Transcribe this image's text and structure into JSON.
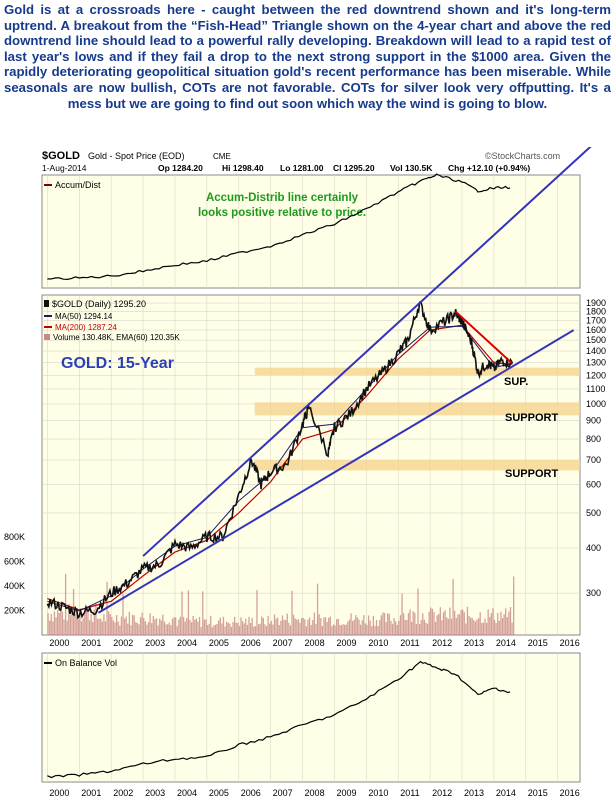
{
  "caption": "Gold is at a crossroads here - caught between the red downtrend shown and it's long-term uptrend. A breakout from the “Fish-Head” Triangle shown on the 4-year chart and above the red downtrend line should lead to a powerful rally developing. Breakdown will lead to a rapid test of last year's lows and if they fail a drop to the next strong support in the $1000 area. Given the rapidly deteriorating geopolitical situation gold's recent performance has been miserable. While seasonals are now bullish, COTs are not favorable. COTs for silver look very offputting. It's a mess but we are going to find out soon which way the wind is going to blow.",
  "header": {
    "symbol": "$GOLD",
    "name": "Gold - Spot Price (EOD)",
    "exchange": "CME",
    "date": "1-Aug-2014",
    "op": "Op 1284.20",
    "hi": "Hi 1298.40",
    "lo": "Lo 1281.00",
    "cl": "Cl 1295.20",
    "vol": "Vol 130.5K",
    "chg": "Chg +12.10 (+0.94%)",
    "source": "©StockCharts.com"
  },
  "top_panel": {
    "legend": "Accum/Dist",
    "annotation_line1": "Accum-Distrib line certainly",
    "annotation_line2": "looks positive relative to price."
  },
  "main_panel": {
    "legend_symbol": "$GOLD (Daily) 1295.20",
    "legend_ma50": "MA(50) 1294.14",
    "legend_ma200": "MA(200) 1287.24",
    "legend_volume": "Volume 130.48K, EMA(60) 120.35K",
    "title": "GOLD: 15-Year",
    "label_sup": "SUP.",
    "label_support1": "SUPPORT",
    "label_support2": "SUPPORT"
  },
  "bottom_panel": {
    "legend": "On Balance Vol"
  },
  "colors": {
    "panel_bg": "#ffffe8",
    "price": "#111111",
    "ma50": "#1a1a66",
    "ma200": "#c00000",
    "trendline": "#3333bb",
    "downtrend": "#dd0000",
    "support_band": "#f5d28a",
    "annotation_green": "#1e9a1e",
    "title_blue": "#2b3fb8",
    "volume": "#c98a86"
  },
  "chart_data": {
    "type": "line",
    "x_labels": [
      "2000",
      "2001",
      "2002",
      "2003",
      "2004",
      "2005",
      "2006",
      "2007",
      "2008",
      "2009",
      "2010",
      "2011",
      "2012",
      "2013",
      "2014",
      "2015",
      "2016"
    ],
    "y_scale": "log",
    "y_ticks": [
      300,
      400,
      500,
      600,
      700,
      800,
      900,
      1000,
      1100,
      1200,
      1300,
      1400,
      1500,
      1600,
      1700,
      1800,
      1900
    ],
    "y_tick_labels": [
      "300",
      "400",
      "500",
      "600",
      "700",
      "800",
      "900",
      "1000",
      "1100",
      "1200",
      "1300",
      "1400",
      "1500",
      "1600",
      "1700",
      "1800",
      "1900"
    ],
    "volume_ticks": [
      200000,
      400000,
      600000,
      800000
    ],
    "volume_tick_labels": [
      "200K",
      "400K",
      "600K",
      "800K"
    ],
    "series": [
      {
        "name": "$GOLD (Daily)",
        "x": [
          2000,
          2000.5,
          2001,
          2001.5,
          2002,
          2002.5,
          2003,
          2003.5,
          2004,
          2004.5,
          2005,
          2005.5,
          2006,
          2006.4,
          2006.7,
          2007,
          2007.5,
          2008,
          2008.2,
          2008.8,
          2009,
          2009.5,
          2010,
          2010.5,
          2011,
          2011.3,
          2011.67,
          2012,
          2012.5,
          2012.8,
          2013,
          2013.3,
          2013.5,
          2013.8,
          2014,
          2014.25,
          2014.58
        ],
        "values": [
          285,
          275,
          265,
          270,
          300,
          320,
          350,
          360,
          410,
          400,
          430,
          430,
          560,
          700,
          600,
          650,
          680,
          880,
          980,
          730,
          860,
          940,
          1100,
          1220,
          1380,
          1500,
          1900,
          1600,
          1700,
          1780,
          1690,
          1480,
          1220,
          1300,
          1250,
          1320,
          1295
        ]
      },
      {
        "name": "MA(50)",
        "x": [
          2000,
          2001,
          2002,
          2003,
          2004,
          2005,
          2006,
          2007,
          2008,
          2009,
          2010,
          2011,
          2012,
          2013,
          2014,
          2014.58
        ],
        "values": [
          285,
          268,
          295,
          350,
          405,
          428,
          540,
          640,
          860,
          880,
          1100,
          1370,
          1630,
          1640,
          1260,
          1294
        ]
      },
      {
        "name": "MA(200)",
        "x": [
          2000,
          2001,
          2002,
          2003,
          2004,
          2005,
          2006,
          2007,
          2008,
          2009,
          2010,
          2011,
          2012,
          2013,
          2014,
          2014.58
        ],
        "values": [
          290,
          270,
          285,
          335,
          390,
          420,
          500,
          610,
          800,
          850,
          1050,
          1330,
          1600,
          1650,
          1300,
          1287
        ]
      }
    ],
    "support_zones": [
      [
        1200,
        1260
      ],
      [
        930,
        1010
      ],
      [
        655,
        700
      ]
    ],
    "downtrend_line": {
      "x": [
        2012.8,
        2014.55
      ],
      "values": [
        1800,
        1300
      ]
    },
    "channel_upper": {
      "x": [
        2003,
        2011.67
      ],
      "values": [
        380,
        1900
      ]
    },
    "channel_lower": {
      "x": [
        2001.6,
        2016.5
      ],
      "values": [
        265,
        1600
      ]
    },
    "ylim": [
      230,
      2000
    ]
  }
}
